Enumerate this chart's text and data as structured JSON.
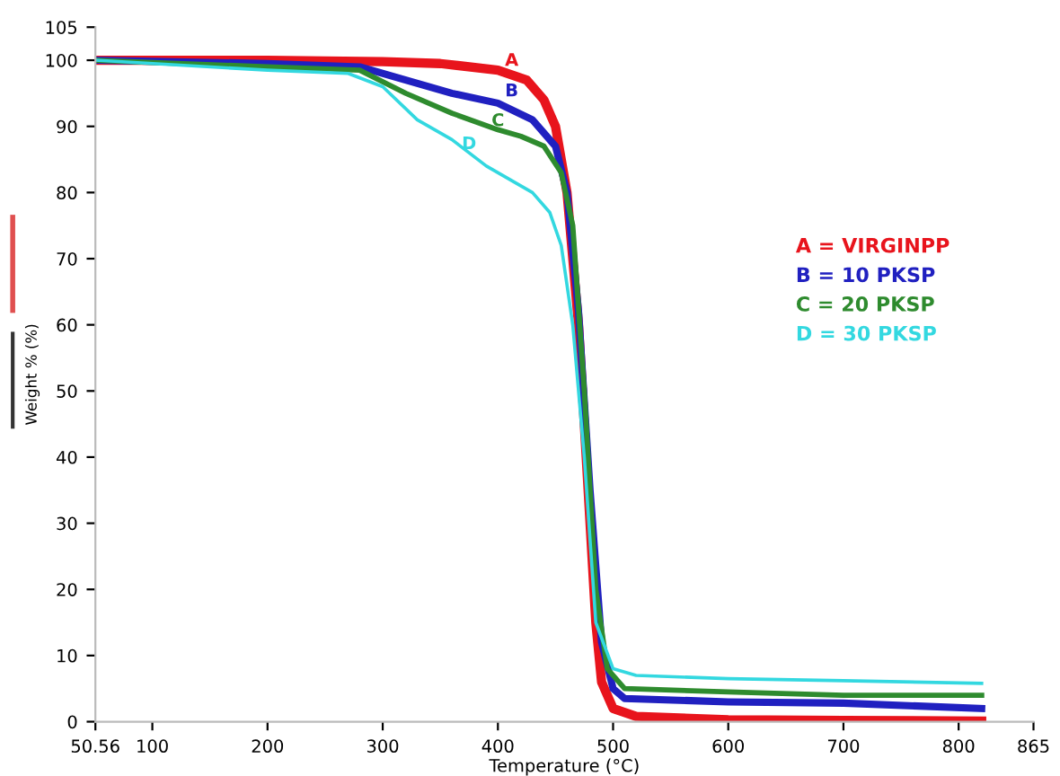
{
  "chart_data": {
    "type": "line",
    "xlabel": "Temperature (°C)",
    "ylabel": "Weight % (%)",
    "xlim": [
      50.56,
      865
    ],
    "xticks": [
      50.56,
      100,
      200,
      300,
      400,
      500,
      600,
      700,
      800,
      865
    ],
    "ylim": [
      0,
      105
    ],
    "yticks": [
      0,
      10,
      20,
      30,
      40,
      50,
      60,
      70,
      80,
      90,
      100,
      105
    ],
    "grid": false,
    "legend": "right",
    "marker": "none",
    "line_style": "solid",
    "series": [
      {
        "name": "A = VIRGINPP",
        "color": "#e8141c",
        "x": [
          50.56,
          200,
          300,
          350,
          400,
          425,
          440,
          450,
          460,
          470,
          475,
          480,
          485,
          490,
          500,
          520,
          600,
          700,
          820
        ],
        "values": [
          100,
          100,
          99.8,
          99.5,
          98.5,
          97,
          94,
          90,
          80,
          60,
          45,
          30,
          15,
          6,
          2,
          0.8,
          0.3,
          0.2,
          0.1
        ]
      },
      {
        "name": "B = 10 PKSP",
        "color": "#2020c0",
        "x": [
          50.56,
          200,
          280,
          320,
          360,
          400,
          430,
          450,
          460,
          470,
          480,
          490,
          500,
          510,
          600,
          700,
          820
        ],
        "values": [
          100,
          99.5,
          99,
          97,
          95,
          93.5,
          91,
          87,
          80,
          62,
          35,
          12,
          5,
          3.5,
          3,
          2.8,
          2
        ]
      },
      {
        "name": "C = 20 PKSP",
        "color": "#2e8b2e",
        "x": [
          50.56,
          200,
          280,
          320,
          360,
          400,
          420,
          440,
          455,
          465,
          475,
          485,
          495,
          510,
          600,
          700,
          820
        ],
        "values": [
          100,
          99,
          98.5,
          95,
          92,
          89.5,
          88.5,
          87,
          83,
          75,
          50,
          20,
          8,
          5,
          4.5,
          4,
          4
        ]
      },
      {
        "name": "D = 30 PKSP",
        "color": "#33d8e0",
        "x": [
          50.56,
          200,
          270,
          300,
          330,
          360,
          390,
          410,
          430,
          445,
          455,
          465,
          475,
          485,
          500,
          520,
          600,
          700,
          820
        ],
        "values": [
          100,
          98.5,
          98,
          96,
          91,
          88,
          84,
          82,
          80,
          77,
          72,
          60,
          40,
          15,
          8,
          7,
          6.5,
          6.2,
          5.8
        ]
      }
    ],
    "annotations": [
      {
        "text": "A",
        "x": 412,
        "y": 98.6
      },
      {
        "text": "B",
        "x": 412,
        "y": 94
      },
      {
        "text": "C",
        "x": 400,
        "y": 89.5
      },
      {
        "text": "D",
        "x": 375,
        "y": 86
      }
    ]
  }
}
